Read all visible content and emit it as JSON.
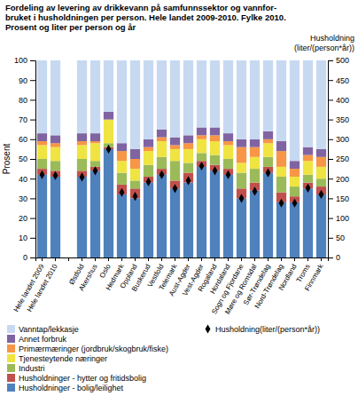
{
  "chart_data": {
    "type": "bar",
    "title": [
      "Fordeling av levering av drikkevann på samfunnssektor og vannfor-",
      "bruket i husholdningen per person. Hele landet 2009-2010. Fylke 2010.",
      "Prosent og liter per person og år"
    ],
    "ylabel": "Prosent",
    "y2label": [
      "Husholdning",
      "(liter/(person*år))"
    ],
    "categories": [
      "Hele landet 2009",
      "Hele landet 2010",
      null,
      "Østfold",
      "Akershus",
      "Oslo",
      "Hedmark",
      "Oppland",
      "Buskerud",
      "Vestfold",
      "Telemark",
      "Aust-Agder",
      "Vest-Agder",
      "Rogaland",
      "Hordaland",
      "Sogn og Fjordane",
      "Møre og Romsdal",
      "Sør-Trøndelag",
      "Nord-Trøndelag",
      "Nordland",
      "Troms",
      "Finnmark"
    ],
    "series": [
      {
        "name": "Husholdninger - bolig/leilighet",
        "color": "#4f81bd",
        "values": [
          42,
          41,
          0,
          41,
          44,
          55,
          32,
          30,
          38,
          42,
          35,
          38,
          46,
          44,
          42,
          30,
          34,
          43,
          28,
          28,
          35,
          32
        ]
      },
      {
        "name": "Husholdninger - hytter og fritidsbolig",
        "color": "#c0504d",
        "values": [
          3,
          3,
          0,
          3,
          2,
          1,
          5,
          5,
          3,
          3,
          4,
          5,
          3,
          3,
          3,
          5,
          4,
          3,
          5,
          3,
          3,
          4
        ]
      },
      {
        "name": "Industri",
        "color": "#9bbb59",
        "values": [
          5,
          5,
          0,
          6,
          3,
          2,
          6,
          4,
          6,
          6,
          10,
          5,
          4,
          5,
          5,
          8,
          7,
          5,
          8,
          5,
          4,
          4
        ]
      },
      {
        "name": "Tjenesteytende næringer",
        "color": "#f0e442",
        "values": [
          7,
          7,
          0,
          7,
          9,
          12,
          6,
          6,
          7,
          8,
          6,
          7,
          7,
          7,
          7,
          5,
          6,
          7,
          5,
          5,
          7,
          6
        ]
      },
      {
        "name": "Primærmæringer (jordbruk/skogbruk/fiske)",
        "color": "#f79646",
        "values": [
          2,
          2,
          0,
          2,
          1,
          0,
          5,
          5,
          2,
          2,
          2,
          3,
          2,
          3,
          2,
          8,
          5,
          2,
          8,
          4,
          3,
          5
        ]
      },
      {
        "name": "Annet forbruk",
        "color": "#8064a2",
        "values": [
          4,
          4,
          0,
          4,
          4,
          4,
          4,
          5,
          4,
          4,
          4,
          4,
          4,
          4,
          4,
          4,
          4,
          4,
          5,
          4,
          4,
          4
        ]
      },
      {
        "name": "Vanntap/lekkasje",
        "color": "#c6d9f1",
        "values": [
          37,
          38,
          0,
          37,
          37,
          26,
          42,
          45,
          40,
          35,
          39,
          38,
          34,
          34,
          37,
          40,
          40,
          36,
          41,
          51,
          44,
          45
        ]
      },
      {
        "name": "Husholdning(liter/(person*år))",
        "type": "scatter",
        "axis": "y2",
        "marker": "diamond",
        "color": "#000000",
        "values": [
          210,
          208,
          null,
          204,
          220,
          275,
          165,
          155,
          192,
          210,
          175,
          195,
          232,
          220,
          210,
          150,
          168,
          215,
          138,
          138,
          176,
          160
        ]
      }
    ],
    "stacked": true,
    "ylim": [
      0,
      100
    ],
    "yticks": [
      0,
      10,
      20,
      30,
      40,
      50,
      60,
      70,
      80,
      90,
      100
    ],
    "y2lim": [
      0,
      500
    ],
    "y2ticks": [
      0,
      50,
      100,
      150,
      200,
      250,
      300,
      350,
      400,
      450,
      500
    ],
    "grid": false,
    "legend": "bottom"
  }
}
